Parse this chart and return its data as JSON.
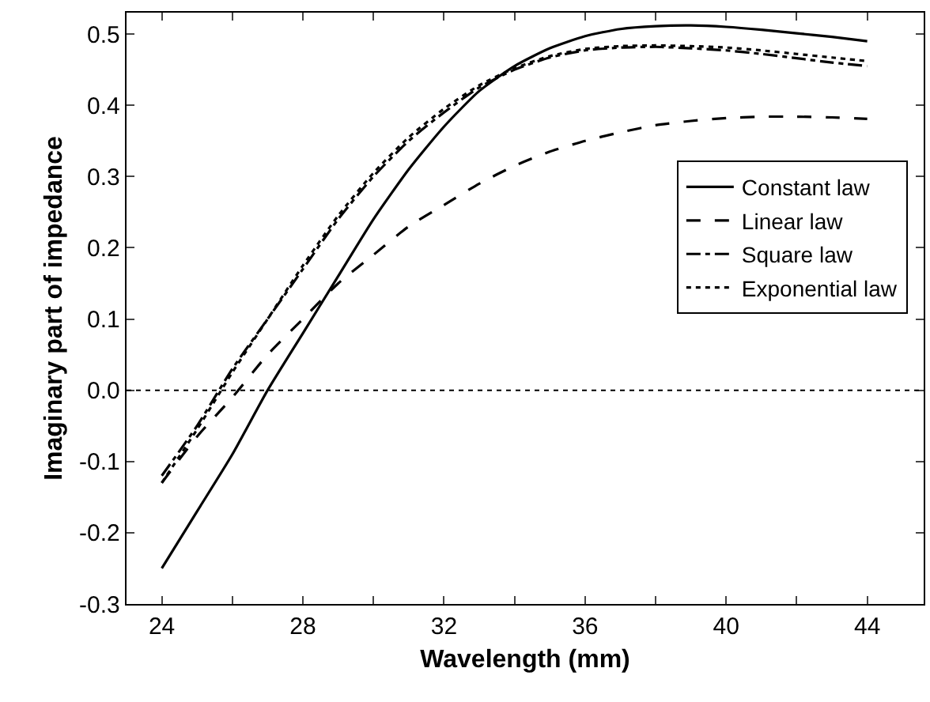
{
  "chart_data": {
    "type": "line",
    "xlabel": "Wavelength (mm)",
    "ylabel": "Imaginary part of impedance",
    "xlim": [
      23,
      45.6
    ],
    "xticks": [
      24,
      {
        "value": 26,
        "label": null
      },
      28,
      {
        "value": 30,
        "label": null
      },
      32,
      {
        "value": 34,
        "label": null
      },
      36,
      {
        "value": 38,
        "label": null
      },
      40,
      {
        "value": 42,
        "label": null
      },
      44
    ],
    "ylim": [
      -0.3,
      0.53
    ],
    "yticks": [
      {
        "value": -0.3,
        "label": "-0.3"
      },
      {
        "value": -0.2,
        "label": "-0.2"
      },
      {
        "value": -0.1,
        "label": "-0.1"
      },
      {
        "value": 0,
        "label": "0.0"
      },
      0.1,
      0.2,
      0.3,
      0.4,
      0.5
    ],
    "grid": false,
    "legend": "right",
    "marker": "none",
    "ref_lines": [
      {
        "axis": "y",
        "value": 0,
        "line_style": "dotted",
        "color": "#000000"
      }
    ],
    "series": [
      {
        "name": "Constant law",
        "color": "#000000",
        "line_style": "solid",
        "x": [
          24,
          25,
          26,
          27,
          28,
          29,
          30,
          31,
          32,
          33,
          34,
          35,
          36,
          37,
          38,
          39,
          40,
          41,
          42,
          43,
          44
        ],
        "values": [
          -0.25,
          -0.17,
          -0.09,
          0.0,
          0.08,
          0.16,
          0.24,
          0.31,
          0.37,
          0.42,
          0.455,
          0.48,
          0.497,
          0.507,
          0.511,
          0.512,
          0.51,
          0.506,
          0.501,
          0.496,
          0.49
        ]
      },
      {
        "name": "Linear law",
        "color": "#000000",
        "line_style": "dashed",
        "x": [
          24,
          25,
          26,
          27,
          28,
          29,
          30,
          31,
          32,
          33,
          34,
          35,
          36,
          37,
          38,
          39,
          40,
          41,
          42,
          43,
          44
        ],
        "values": [
          -0.13,
          -0.065,
          -0.01,
          0.05,
          0.1,
          0.15,
          0.19,
          0.23,
          0.26,
          0.29,
          0.315,
          0.335,
          0.35,
          0.362,
          0.372,
          0.378,
          0.382,
          0.384,
          0.384,
          0.383,
          0.381
        ]
      },
      {
        "name": "Square law",
        "color": "#000000",
        "line_style": "dashdot",
        "x": [
          24,
          25,
          26,
          27,
          28,
          29,
          30,
          31,
          32,
          33,
          34,
          35,
          36,
          37,
          38,
          39,
          40,
          41,
          42,
          43,
          44
        ],
        "values": [
          -0.12,
          -0.05,
          0.03,
          0.1,
          0.17,
          0.24,
          0.3,
          0.35,
          0.39,
          0.425,
          0.45,
          0.467,
          0.477,
          0.481,
          0.482,
          0.48,
          0.477,
          0.472,
          0.466,
          0.46,
          0.455
        ]
      },
      {
        "name": "Exponential law",
        "color": "#000000",
        "line_style": "dotted",
        "x": [
          24,
          25,
          26,
          27,
          28,
          29,
          30,
          31,
          32,
          33,
          34,
          35,
          36,
          37,
          38,
          39,
          40,
          41,
          42,
          43,
          44
        ],
        "values": [
          -0.13,
          -0.055,
          0.025,
          0.1,
          0.175,
          0.245,
          0.305,
          0.355,
          0.395,
          0.428,
          0.452,
          0.469,
          0.479,
          0.483,
          0.484,
          0.483,
          0.481,
          0.477,
          0.472,
          0.467,
          0.462
        ]
      }
    ]
  }
}
